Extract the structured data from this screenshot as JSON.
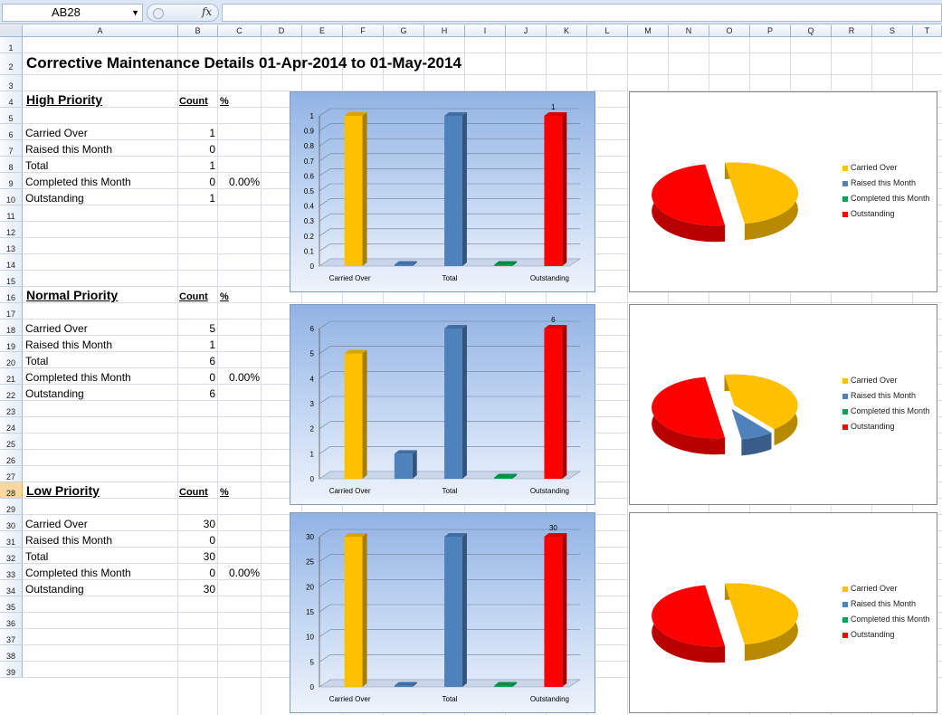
{
  "formula_bar": {
    "name_box": "AB28",
    "fx_label": "fx",
    "formula": ""
  },
  "columns": [
    "A",
    "B",
    "C",
    "D",
    "E",
    "F",
    "G",
    "H",
    "I",
    "J",
    "K",
    "L",
    "M",
    "N",
    "O",
    "P",
    "Q",
    "R",
    "S",
    "T"
  ],
  "rows": [
    "1",
    "2",
    "3",
    "4",
    "5",
    "6",
    "7",
    "8",
    "9",
    "10",
    "11",
    "12",
    "13",
    "14",
    "15",
    "16",
    "17",
    "18",
    "19",
    "20",
    "21",
    "22",
    "23",
    "24",
    "25",
    "26",
    "27",
    "28",
    "29",
    "30",
    "31",
    "32",
    "33",
    "34",
    "35",
    "36",
    "37",
    "38",
    "39"
  ],
  "sheet": {
    "title": "Corrective Maintenance Details 01-Apr-2014 to 01-May-2014",
    "count_header": "Count",
    "pct_header": "%",
    "sections": [
      {
        "name": "High Priority",
        "rows": [
          {
            "label": "Carried Over",
            "count": "1",
            "pct": ""
          },
          {
            "label": "Raised this Month",
            "count": "0",
            "pct": ""
          },
          {
            "label": "Total",
            "count": "1",
            "pct": ""
          },
          {
            "label": "Completed this Month",
            "count": "0",
            "pct": "0.00%"
          },
          {
            "label": "Outstanding",
            "count": "1",
            "pct": ""
          }
        ]
      },
      {
        "name": "Normal Priority",
        "rows": [
          {
            "label": "Carried Over",
            "count": "5",
            "pct": ""
          },
          {
            "label": "Raised this Month",
            "count": "1",
            "pct": ""
          },
          {
            "label": "Total",
            "count": "6",
            "pct": ""
          },
          {
            "label": "Completed this Month",
            "count": "0",
            "pct": "0.00%"
          },
          {
            "label": "Outstanding",
            "count": "6",
            "pct": ""
          }
        ]
      },
      {
        "name": "Low Priority",
        "rows": [
          {
            "label": "Carried Over",
            "count": "30",
            "pct": ""
          },
          {
            "label": "Raised this Month",
            "count": "0",
            "pct": ""
          },
          {
            "label": "Total",
            "count": "30",
            "pct": ""
          },
          {
            "label": "Completed this Month",
            "count": "0",
            "pct": "0.00%"
          },
          {
            "label": "Outstanding",
            "count": "30",
            "pct": ""
          }
        ]
      }
    ]
  },
  "colors": {
    "carried_over": "#ffc000",
    "raised": "#4f81bd",
    "total": "#4f81bd",
    "completed": "#00a651",
    "outstanding": "#ff0000",
    "selected_row": "#f8d8a0"
  },
  "chart_data": [
    {
      "type": "bar",
      "categories": [
        "Carried Over",
        "Raised this Month",
        "Total",
        "Completed this Month",
        "Outstanding"
      ],
      "shown_x_labels": [
        "Carried Over",
        "Total",
        "Outstanding"
      ],
      "values": [
        1,
        0,
        1,
        0,
        1
      ],
      "ylim": [
        0,
        1
      ],
      "ticks": [
        "0",
        "0.1",
        "0.2",
        "0.3",
        "0.4",
        "0.5",
        "0.6",
        "0.7",
        "0.8",
        "0.9",
        "1"
      ],
      "data_label": "1",
      "grid": true,
      "title": ""
    },
    {
      "type": "pie",
      "legend": [
        "Carried Over",
        "Raised this Month",
        "Completed this Month",
        "Outstanding"
      ],
      "values": [
        1,
        0,
        0,
        1
      ],
      "legend_position": "right"
    },
    {
      "type": "bar",
      "categories": [
        "Carried Over",
        "Raised this Month",
        "Total",
        "Completed this Month",
        "Outstanding"
      ],
      "shown_x_labels": [
        "Carried Over",
        "Total",
        "Outstanding"
      ],
      "values": [
        5,
        1,
        6,
        0,
        6
      ],
      "ylim": [
        0,
        6
      ],
      "ticks": [
        "0",
        "1",
        "2",
        "3",
        "4",
        "5",
        "6"
      ],
      "data_label": "6",
      "grid": true,
      "title": ""
    },
    {
      "type": "pie",
      "legend": [
        "Carried Over",
        "Raised this Month",
        "Completed this Month",
        "Outstanding"
      ],
      "values": [
        5,
        1,
        0,
        6
      ],
      "legend_position": "right"
    },
    {
      "type": "bar",
      "categories": [
        "Carried Over",
        "Raised this Month",
        "Total",
        "Completed this Month",
        "Outstanding"
      ],
      "shown_x_labels": [
        "Carried Over",
        "Total",
        "Outstanding"
      ],
      "values": [
        30,
        0,
        30,
        0,
        30
      ],
      "ylim": [
        0,
        30
      ],
      "ticks": [
        "0",
        "5",
        "10",
        "15",
        "20",
        "25",
        "30"
      ],
      "data_label": "30",
      "grid": true,
      "title": ""
    },
    {
      "type": "pie",
      "legend": [
        "Carried Over",
        "Raised this Month",
        "Completed this Month",
        "Outstanding"
      ],
      "values": [
        30,
        0,
        0,
        30
      ],
      "legend_position": "right"
    }
  ]
}
